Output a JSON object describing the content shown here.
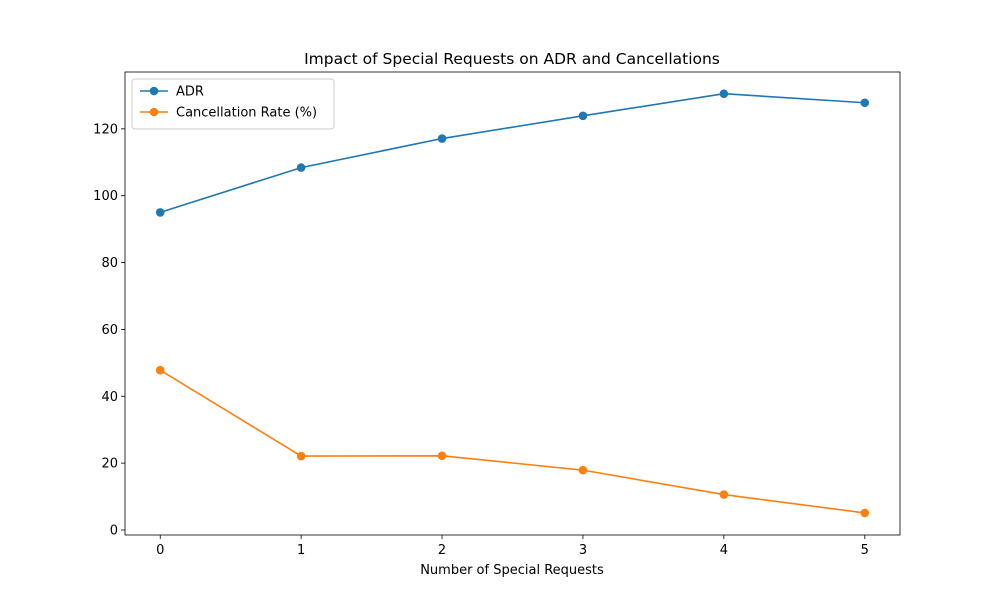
{
  "chart_data": {
    "type": "line",
    "title": "Impact of Special Requests on ADR and Cancellations",
    "xlabel": "Number of Special Requests",
    "ylabel": "",
    "x": [
      0,
      1,
      2,
      3,
      4,
      5
    ],
    "xticks": [
      "0",
      "1",
      "2",
      "3",
      "4",
      "5"
    ],
    "yticks": [
      "0",
      "20",
      "40",
      "60",
      "80",
      "100",
      "120"
    ],
    "xlim": [
      -0.25,
      5.25
    ],
    "ylim": [
      -1.5,
      137
    ],
    "grid": false,
    "legend_position": "top-left",
    "series": [
      {
        "name": "ADR",
        "color": "#1f77b4",
        "values": [
          95.0,
          108.4,
          117.1,
          123.9,
          130.5,
          127.8
        ]
      },
      {
        "name": "Cancellation Rate (%)",
        "color": "#ff7f0e",
        "values": [
          47.8,
          22.1,
          22.2,
          17.9,
          10.6,
          5.1
        ]
      }
    ]
  }
}
